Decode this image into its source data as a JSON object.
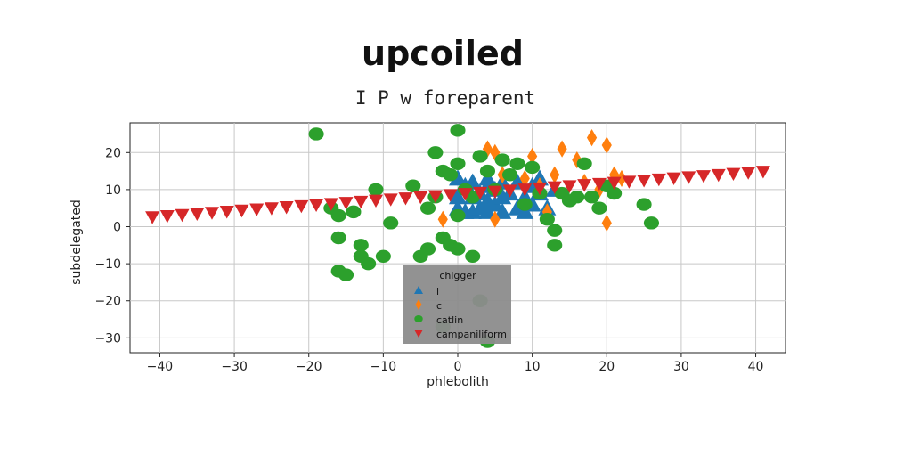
{
  "chart_data": {
    "type": "scatter",
    "title": "upcoiled",
    "subtitle": "I P w foreparent",
    "xlabel": "phlebolith",
    "ylabel": "subdelegated",
    "xlim": [
      -44,
      44
    ],
    "ylim": [
      -34,
      28
    ],
    "xticks": [
      -40,
      -30,
      -20,
      -10,
      0,
      10,
      20,
      30,
      40
    ],
    "yticks": [
      -30,
      -20,
      -10,
      0,
      10,
      20
    ],
    "grid": true,
    "legend": {
      "title": "chigger",
      "placement": "lower-center",
      "background": "#8c8c8c"
    },
    "series": [
      {
        "name": "l",
        "marker": "triangle-up",
        "color": "#1f77b4",
        "points": [
          [
            0,
            13
          ],
          [
            0,
            8
          ],
          [
            0,
            5
          ],
          [
            1,
            11
          ],
          [
            1,
            4
          ],
          [
            2,
            12
          ],
          [
            2,
            8
          ],
          [
            2,
            4
          ],
          [
            3,
            9
          ],
          [
            3,
            5
          ],
          [
            4,
            13
          ],
          [
            4,
            11
          ],
          [
            4,
            7
          ],
          [
            4,
            4
          ],
          [
            5,
            10
          ],
          [
            5,
            6
          ],
          [
            6,
            12
          ],
          [
            6,
            8
          ],
          [
            6,
            4
          ],
          [
            7,
            9
          ],
          [
            8,
            12
          ],
          [
            8,
            5
          ],
          [
            9,
            8
          ],
          [
            9,
            4
          ],
          [
            10,
            11
          ],
          [
            10,
            6
          ],
          [
            11,
            13
          ],
          [
            11,
            9
          ],
          [
            12,
            5
          ],
          [
            13,
            10
          ]
        ]
      },
      {
        "name": "c",
        "marker": "diamond",
        "color": "#ff7f0e",
        "points": [
          [
            -2,
            2
          ],
          [
            4,
            21
          ],
          [
            5,
            20
          ],
          [
            5,
            2
          ],
          [
            6,
            14
          ],
          [
            9,
            13
          ],
          [
            10,
            19
          ],
          [
            11,
            11
          ],
          [
            12,
            4
          ],
          [
            13,
            14
          ],
          [
            14,
            21
          ],
          [
            16,
            18
          ],
          [
            17,
            12
          ],
          [
            18,
            24
          ],
          [
            19,
            10
          ],
          [
            20,
            22
          ],
          [
            20,
            1
          ],
          [
            21,
            14
          ],
          [
            22,
            13
          ]
        ]
      },
      {
        "name": "catlin",
        "marker": "circle",
        "color": "#2ca02c",
        "points": [
          [
            -19,
            25
          ],
          [
            -17,
            5
          ],
          [
            -16,
            3
          ],
          [
            -16,
            -3
          ],
          [
            -16,
            -12
          ],
          [
            -15,
            -13
          ],
          [
            -14,
            4
          ],
          [
            -13,
            -5
          ],
          [
            -13,
            -8
          ],
          [
            -12,
            -10
          ],
          [
            -11,
            10
          ],
          [
            -10,
            -8
          ],
          [
            -9,
            1
          ],
          [
            -6,
            11
          ],
          [
            -5,
            -8
          ],
          [
            -4,
            5
          ],
          [
            -4,
            -6
          ],
          [
            -3,
            8
          ],
          [
            -3,
            20
          ],
          [
            -2,
            -3
          ],
          [
            -2,
            15
          ],
          [
            -1,
            14
          ],
          [
            -1,
            -5
          ],
          [
            0,
            26
          ],
          [
            0,
            17
          ],
          [
            0,
            3
          ],
          [
            0,
            -6
          ],
          [
            1,
            10
          ],
          [
            2,
            8
          ],
          [
            2,
            -8
          ],
          [
            3,
            19
          ],
          [
            3,
            -20
          ],
          [
            4,
            15
          ],
          [
            5,
            10
          ],
          [
            6,
            18
          ],
          [
            7,
            14
          ],
          [
            8,
            17
          ],
          [
            9,
            6
          ],
          [
            10,
            16
          ],
          [
            11,
            9
          ],
          [
            12,
            2
          ],
          [
            13,
            -5
          ],
          [
            13,
            -1
          ],
          [
            14,
            9
          ],
          [
            15,
            7
          ],
          [
            16,
            8
          ],
          [
            17,
            17
          ],
          [
            18,
            8
          ],
          [
            19,
            5
          ],
          [
            20,
            11
          ],
          [
            21,
            9
          ],
          [
            25,
            6
          ],
          [
            26,
            1
          ],
          [
            -2,
            -27
          ],
          [
            4,
            -31
          ]
        ]
      },
      {
        "name": "campaniliform",
        "marker": "triangle-down",
        "color": "#d62728",
        "points": [
          [
            -41,
            2.6
          ],
          [
            -39,
            2.9
          ],
          [
            -37,
            3.2
          ],
          [
            -35,
            3.5
          ],
          [
            -33,
            3.8
          ],
          [
            -31,
            4.1
          ],
          [
            -29,
            4.4
          ],
          [
            -27,
            4.7
          ],
          [
            -25,
            5.0
          ],
          [
            -23,
            5.3
          ],
          [
            -21,
            5.6
          ],
          [
            -19,
            5.9
          ],
          [
            -17,
            6.2
          ],
          [
            -15,
            6.5
          ],
          [
            -13,
            6.8
          ],
          [
            -11,
            7.1
          ],
          [
            -9,
            7.4
          ],
          [
            -7,
            7.7
          ],
          [
            -5,
            8.0
          ],
          [
            -3,
            8.3
          ],
          [
            -1,
            8.6
          ],
          [
            1,
            8.9
          ],
          [
            3,
            9.2
          ],
          [
            5,
            9.5
          ],
          [
            7,
            9.8
          ],
          [
            9,
            10.1
          ],
          [
            11,
            10.4
          ],
          [
            13,
            10.7
          ],
          [
            15,
            11.0
          ],
          [
            17,
            11.3
          ],
          [
            19,
            11.6
          ],
          [
            21,
            11.9
          ],
          [
            23,
            12.2
          ],
          [
            25,
            12.5
          ],
          [
            27,
            12.8
          ],
          [
            29,
            13.1
          ],
          [
            31,
            13.4
          ],
          [
            33,
            13.7
          ],
          [
            35,
            14.0
          ],
          [
            37,
            14.3
          ],
          [
            39,
            14.6
          ],
          [
            41,
            14.9
          ]
        ]
      }
    ]
  }
}
